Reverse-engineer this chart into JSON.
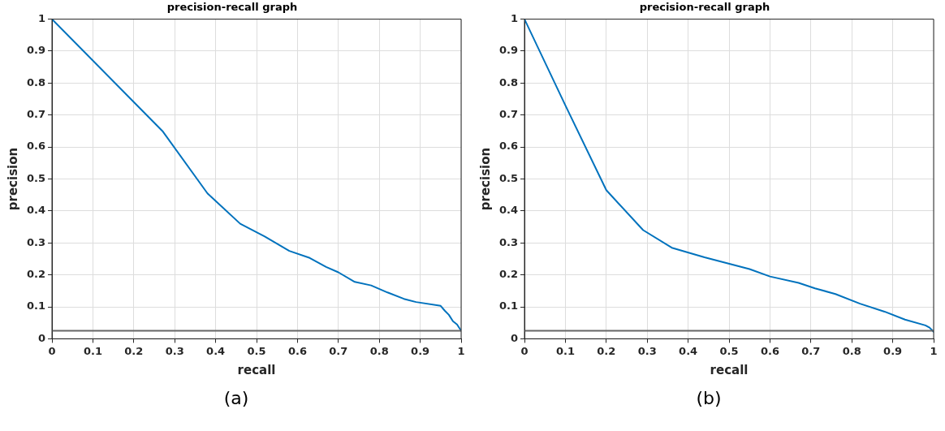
{
  "chart_data": [
    {
      "type": "line",
      "title": "precision-recall graph",
      "xlabel": "recall",
      "ylabel": "precision",
      "annotations": [
        "(a)"
      ],
      "grid": true,
      "legend": false,
      "marker": "none",
      "line_style": "solid",
      "xlim": [
        0,
        1
      ],
      "ylim": [
        0,
        1
      ],
      "xticks": [
        0,
        0.1,
        0.2,
        0.3,
        0.4,
        0.5,
        0.6,
        0.7,
        0.8,
        0.9,
        1
      ],
      "yticks": [
        0,
        0.1,
        0.2,
        0.3,
        0.4,
        0.5,
        0.6,
        0.7,
        0.8,
        0.9,
        1
      ],
      "ref_lines": [
        {
          "axis": "y",
          "value": 0.025,
          "color": "#666666"
        }
      ],
      "series": [
        {
          "color": "#0072bd",
          "x": [
            0,
            0.27,
            0.38,
            0.46,
            0.52,
            0.58,
            0.63,
            0.67,
            0.7,
            0.74,
            0.78,
            0.82,
            0.86,
            0.89,
            0.95,
            0.96,
            0.97,
            0.98,
            0.99,
            1
          ],
          "values": [
            1,
            0.65,
            0.455,
            0.36,
            0.32,
            0.275,
            0.253,
            0.225,
            0.208,
            0.178,
            0.167,
            0.145,
            0.125,
            0.115,
            0.103,
            0.088,
            0.075,
            0.055,
            0.045,
            0.025
          ]
        }
      ]
    },
    {
      "type": "line",
      "title": "precision-recall graph",
      "xlabel": "recall",
      "ylabel": "precision",
      "annotations": [
        "(b)"
      ],
      "grid": true,
      "legend": false,
      "marker": "none",
      "line_style": "solid",
      "xlim": [
        0,
        1
      ],
      "ylim": [
        0,
        1
      ],
      "xticks": [
        0,
        0.1,
        0.2,
        0.3,
        0.4,
        0.5,
        0.6,
        0.7,
        0.8,
        0.9,
        1
      ],
      "yticks": [
        0,
        0.1,
        0.2,
        0.3,
        0.4,
        0.5,
        0.6,
        0.7,
        0.8,
        0.9,
        1
      ],
      "ref_lines": [
        {
          "axis": "y",
          "value": 0.025,
          "color": "#666666"
        }
      ],
      "series": [
        {
          "color": "#0072bd",
          "x": [
            0,
            0.1,
            0.2,
            0.29,
            0.36,
            0.44,
            0.55,
            0.6,
            0.67,
            0.71,
            0.76,
            0.82,
            0.88,
            0.93,
            0.98,
            0.99,
            1
          ],
          "values": [
            1,
            0.73,
            0.465,
            0.34,
            0.285,
            0.255,
            0.218,
            0.195,
            0.175,
            0.158,
            0.14,
            0.11,
            0.085,
            0.06,
            0.042,
            0.035,
            0.022
          ]
        }
      ]
    }
  ]
}
